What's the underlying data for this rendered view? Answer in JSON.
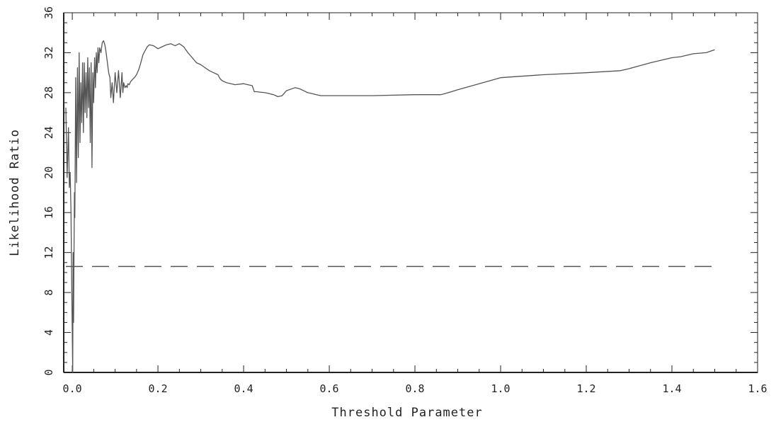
{
  "chart_data": {
    "type": "line",
    "title": "",
    "xlabel": "Threshold Parameter",
    "ylabel": "Likelihood Ratio",
    "xlim": [
      -0.02,
      1.6
    ],
    "ylim": [
      0,
      36
    ],
    "xticks": [
      0.0,
      0.2,
      0.4,
      0.6,
      0.8,
      1.0,
      1.2,
      1.4,
      1.6
    ],
    "xtick_labels": [
      "0.0",
      "0.2",
      "0.4",
      "0.6",
      "0.8",
      "1.0",
      "1.2",
      "1.4",
      "1.6"
    ],
    "yticks": [
      0,
      4,
      8,
      12,
      16,
      20,
      24,
      28,
      32,
      36
    ],
    "ytick_labels": [
      "0",
      "4",
      "8",
      "12",
      "16",
      "20",
      "24",
      "28",
      "32",
      "36"
    ],
    "grid": false,
    "legend": "none",
    "colors": {
      "series": "#555555",
      "reference": "#555555",
      "axes": "#222222"
    },
    "series": [
      {
        "style": "solid",
        "x": [
          -0.015,
          -0.012,
          -0.009,
          -0.007,
          -0.005,
          -0.003,
          -0.001,
          0.001,
          0.002,
          0.003,
          0.005,
          0.006,
          0.008,
          0.01,
          0.012,
          0.014,
          0.016,
          0.018,
          0.02,
          0.022,
          0.024,
          0.026,
          0.028,
          0.03,
          0.032,
          0.034,
          0.036,
          0.038,
          0.04,
          0.042,
          0.044,
          0.046,
          0.048,
          0.05,
          0.052,
          0.054,
          0.056,
          0.058,
          0.06,
          0.062,
          0.064,
          0.067,
          0.07,
          0.073,
          0.076,
          0.079,
          0.082,
          0.085,
          0.088,
          0.09,
          0.093,
          0.096,
          0.1,
          0.104,
          0.108,
          0.112,
          0.116,
          0.118,
          0.12,
          0.123,
          0.126,
          0.128,
          0.13,
          0.133,
          0.136,
          0.14,
          0.145,
          0.15,
          0.155,
          0.16,
          0.165,
          0.17,
          0.175,
          0.18,
          0.19,
          0.2,
          0.21,
          0.22,
          0.23,
          0.24,
          0.25,
          0.26,
          0.27,
          0.28,
          0.29,
          0.3,
          0.31,
          0.32,
          0.33,
          0.34,
          0.345,
          0.35,
          0.36,
          0.38,
          0.4,
          0.42,
          0.425,
          0.43,
          0.45,
          0.46,
          0.47,
          0.48,
          0.49,
          0.5,
          0.52,
          0.53,
          0.54,
          0.55,
          0.56,
          0.57,
          0.58,
          0.6,
          0.7,
          0.8,
          0.86,
          0.87,
          0.9,
          0.95,
          1.0,
          1.1,
          1.2,
          1.28,
          1.3,
          1.35,
          1.4,
          1.42,
          1.45,
          1.48,
          1.5
        ],
        "y": [
          26.5,
          19.5,
          24.5,
          18.5,
          20.0,
          16.0,
          7.5,
          0.0,
          12.0,
          5.0,
          18.0,
          15.5,
          29.5,
          19.0,
          30.5,
          21.5,
          32.0,
          23.0,
          29.0,
          25.0,
          31.0,
          24.0,
          31.0,
          26.0,
          30.0,
          25.5,
          31.5,
          26.5,
          30.5,
          23.0,
          31.0,
          20.5,
          30.0,
          27.0,
          31.5,
          28.5,
          32.0,
          30.0,
          32.5,
          31.0,
          32.5,
          32.0,
          33.0,
          33.2,
          32.8,
          32.0,
          31.0,
          30.0,
          29.5,
          27.5,
          29.0,
          27.0,
          30.0,
          28.0,
          30.2,
          27.5,
          30.0,
          28.0,
          29.0,
          28.5,
          28.7,
          28.5,
          28.9,
          28.8,
          29.1,
          29.3,
          29.5,
          29.8,
          30.3,
          31.0,
          31.8,
          32.2,
          32.6,
          32.8,
          32.7,
          32.4,
          32.6,
          32.8,
          32.9,
          32.7,
          32.9,
          32.6,
          32.0,
          31.5,
          31.0,
          30.8,
          30.5,
          30.2,
          30.0,
          29.8,
          29.4,
          29.2,
          29.0,
          28.8,
          28.9,
          28.7,
          28.1,
          28.1,
          28.0,
          27.9,
          27.8,
          27.6,
          27.7,
          28.2,
          28.5,
          28.4,
          28.2,
          28.0,
          27.9,
          27.8,
          27.7,
          27.7,
          27.7,
          27.8,
          27.8,
          27.9,
          28.3,
          28.9,
          29.5,
          29.8,
          30.0,
          30.2,
          30.4,
          31.0,
          31.5,
          31.6,
          31.9,
          32.0,
          32.3
        ]
      },
      {
        "style": "dashed",
        "x": [
          -0.015,
          1.5
        ],
        "y": [
          10.6,
          10.6
        ]
      }
    ]
  }
}
